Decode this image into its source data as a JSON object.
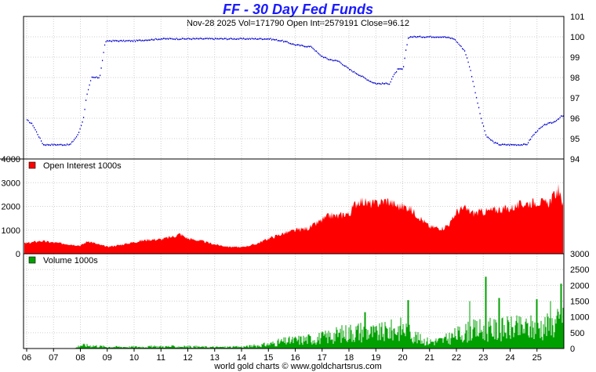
{
  "header": {
    "title": "FF  -  30 Day Fed Funds",
    "subtitle": "Nov-28  2025   Vol=171790   Open Int=2579191   Close=96.12"
  },
  "footer": {
    "credit": "world gold charts © www.goldchartsrus.com"
  },
  "colors": {
    "price": "#0000cc",
    "open_interest": "#ff0000",
    "volume": "#00a000",
    "grid": "#cfcfcf",
    "title": "#1a1aff"
  },
  "chart_data": [
    {
      "type": "line",
      "name": "price",
      "x_tick_labels": [
        "06",
        "07",
        "08",
        "09",
        "10",
        "11",
        "12",
        "13",
        "14",
        "15",
        "16",
        "17",
        "18",
        "19",
        "20",
        "21",
        "22",
        "23",
        "24",
        "25"
      ],
      "y_tick_labels": [
        "94",
        "95",
        "96",
        "97",
        "98",
        "99",
        "100",
        "101"
      ],
      "ylim": [
        94,
        101
      ],
      "xlim": [
        6.0,
        26.0
      ],
      "keypoints": [
        [
          6.0,
          95.9
        ],
        [
          6.2,
          95.7
        ],
        [
          6.4,
          95.2
        ],
        [
          6.6,
          94.7
        ],
        [
          7.0,
          94.7
        ],
        [
          7.6,
          94.7
        ],
        [
          7.9,
          95.2
        ],
        [
          8.1,
          96.0
        ],
        [
          8.2,
          97.0
        ],
        [
          8.3,
          97.5
        ],
        [
          8.4,
          98.0
        ],
        [
          8.7,
          98.0
        ],
        [
          8.8,
          98.8
        ],
        [
          8.9,
          99.7
        ],
        [
          9.0,
          99.8
        ],
        [
          9.5,
          99.8
        ],
        [
          10.0,
          99.8
        ],
        [
          11.0,
          99.9
        ],
        [
          12.0,
          99.9
        ],
        [
          14.0,
          99.9
        ],
        [
          15.0,
          99.9
        ],
        [
          15.5,
          99.8
        ],
        [
          16.0,
          99.6
        ],
        [
          16.6,
          99.5
        ],
        [
          16.9,
          99.1
        ],
        [
          17.2,
          98.9
        ],
        [
          17.6,
          98.8
        ],
        [
          18.0,
          98.4
        ],
        [
          18.4,
          98.1
        ],
        [
          18.8,
          97.8
        ],
        [
          19.0,
          97.7
        ],
        [
          19.5,
          97.7
        ],
        [
          19.6,
          98.0
        ],
        [
          19.8,
          98.4
        ],
        [
          20.0,
          98.4
        ],
        [
          20.1,
          99.3
        ],
        [
          20.2,
          100.0
        ],
        [
          20.6,
          100.0
        ],
        [
          21.5,
          100.0
        ],
        [
          21.9,
          99.9
        ],
        [
          22.3,
          99.3
        ],
        [
          22.5,
          98.4
        ],
        [
          22.7,
          97.2
        ],
        [
          22.9,
          96.0
        ],
        [
          23.1,
          95.1
        ],
        [
          23.4,
          94.8
        ],
        [
          23.6,
          94.7
        ],
        [
          24.0,
          94.7
        ],
        [
          24.6,
          94.7
        ],
        [
          24.8,
          95.1
        ],
        [
          25.0,
          95.4
        ],
        [
          25.3,
          95.7
        ],
        [
          25.6,
          95.8
        ],
        [
          25.9,
          96.1
        ]
      ]
    },
    {
      "type": "area",
      "name": "Open Interest  1000s",
      "legend": "Open Interest  1000s",
      "y_tick_labels": [
        "0",
        "1000",
        "2000",
        "3000",
        "4000"
      ],
      "ylim": [
        0,
        4000
      ],
      "keypoints": [
        [
          6.0,
          450
        ],
        [
          6.5,
          550
        ],
        [
          7.0,
          480
        ],
        [
          7.5,
          420
        ],
        [
          8.0,
          350
        ],
        [
          8.3,
          550
        ],
        [
          8.6,
          420
        ],
        [
          9.0,
          300
        ],
        [
          9.5,
          380
        ],
        [
          10.0,
          500
        ],
        [
          10.5,
          600
        ],
        [
          11.0,
          620
        ],
        [
          11.5,
          750
        ],
        [
          11.7,
          850
        ],
        [
          12.0,
          650
        ],
        [
          12.5,
          550
        ],
        [
          13.0,
          400
        ],
        [
          13.5,
          300
        ],
        [
          14.0,
          280
        ],
        [
          14.5,
          400
        ],
        [
          15.0,
          650
        ],
        [
          15.5,
          850
        ],
        [
          16.0,
          1000
        ],
        [
          16.5,
          1100
        ],
        [
          16.8,
          1300
        ],
        [
          17.0,
          1450
        ],
        [
          17.3,
          1650
        ],
        [
          17.6,
          1600
        ],
        [
          17.9,
          1750
        ],
        [
          18.0,
          1650
        ],
        [
          18.2,
          2100
        ],
        [
          18.4,
          2300
        ],
        [
          18.7,
          2150
        ],
        [
          19.0,
          2150
        ],
        [
          19.4,
          2300
        ],
        [
          19.8,
          2050
        ],
        [
          20.2,
          2000
        ],
        [
          20.6,
          1600
        ],
        [
          21.0,
          1150
        ],
        [
          21.5,
          1100
        ],
        [
          21.8,
          1350
        ],
        [
          22.0,
          1800
        ],
        [
          22.3,
          1950
        ],
        [
          22.6,
          1750
        ],
        [
          23.0,
          1800
        ],
        [
          23.5,
          1900
        ],
        [
          24.0,
          1950
        ],
        [
          24.5,
          2150
        ],
        [
          24.8,
          2200
        ],
        [
          25.0,
          2250
        ],
        [
          25.4,
          2150
        ],
        [
          25.6,
          2450
        ],
        [
          25.8,
          2750
        ],
        [
          25.9,
          2250
        ]
      ]
    },
    {
      "type": "bar",
      "name": "Volume  1000s",
      "legend": "Volume  1000s",
      "y_tick_labels": [
        "0",
        "500",
        "1000",
        "1500",
        "2000",
        "2500",
        "3000"
      ],
      "ylim": [
        0,
        3000
      ],
      "keypoints": [
        [
          6.0,
          0
        ],
        [
          6.5,
          0
        ],
        [
          7.0,
          0
        ],
        [
          7.8,
          10
        ],
        [
          8.0,
          120
        ],
        [
          8.5,
          100
        ],
        [
          9.0,
          60
        ],
        [
          10.0,
          60
        ],
        [
          11.0,
          70
        ],
        [
          12.0,
          70
        ],
        [
          13.0,
          50
        ],
        [
          14.0,
          60
        ],
        [
          14.5,
          100
        ],
        [
          15.0,
          150
        ],
        [
          15.5,
          250
        ],
        [
          16.0,
          300
        ],
        [
          16.5,
          350
        ],
        [
          17.0,
          400
        ],
        [
          17.5,
          500
        ],
        [
          18.0,
          600
        ],
        [
          18.5,
          650
        ],
        [
          19.0,
          550
        ],
        [
          19.5,
          650
        ],
        [
          20.0,
          750
        ],
        [
          20.3,
          600
        ],
        [
          20.6,
          350
        ],
        [
          21.0,
          250
        ],
        [
          21.5,
          300
        ],
        [
          22.0,
          500
        ],
        [
          22.5,
          650
        ],
        [
          23.0,
          700
        ],
        [
          23.5,
          700
        ],
        [
          24.0,
          750
        ],
        [
          24.5,
          750
        ],
        [
          25.0,
          800
        ],
        [
          25.5,
          850
        ],
        [
          25.9,
          1000
        ]
      ],
      "peaks": [
        [
          18.6,
          1150
        ],
        [
          20.2,
          1530
        ],
        [
          22.5,
          1500
        ],
        [
          23.1,
          2270
        ],
        [
          23.6,
          1600
        ],
        [
          25.0,
          1560
        ],
        [
          25.5,
          1500
        ],
        [
          25.9,
          2050
        ]
      ]
    }
  ]
}
